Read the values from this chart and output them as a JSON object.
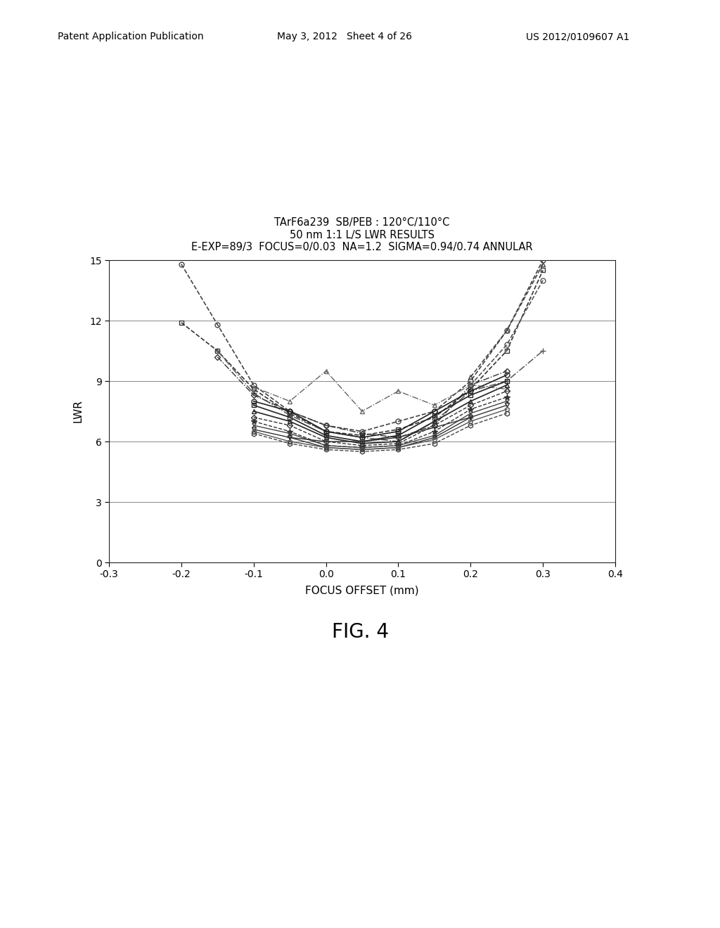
{
  "title_line1": "TArF6a239  SB/PEB : 120°C/110°C",
  "title_line2": "50 nm 1:1 L/S LWR RESULTS",
  "title_line3": "E-EXP=89/3  FOCUS=0/0.03  NA=1.2  SIGMA=0.94/0.74 ANNULAR",
  "xlabel": "FOCUS OFFSET (mm)",
  "ylabel": "LWR",
  "fig_label": "FIG. 4",
  "header_left": "Patent Application Publication",
  "header_mid": "May 3, 2012   Sheet 4 of 26",
  "header_right": "US 2012/0109607 A1",
  "xlim": [
    -0.3,
    0.4
  ],
  "ylim": [
    0,
    15
  ],
  "xticks": [
    -0.3,
    -0.2,
    -0.1,
    0.0,
    0.1,
    0.2,
    0.3,
    0.4
  ],
  "yticks": [
    0,
    3,
    6,
    9,
    12,
    15
  ],
  "background_color": "#ffffff",
  "series": [
    {
      "x": [
        -0.2,
        -0.15,
        -0.1,
        -0.05,
        0.0,
        0.05,
        0.1,
        0.15,
        0.2,
        0.25,
        0.3
      ],
      "y": [
        14.8,
        11.8,
        8.8,
        7.5,
        6.8,
        6.5,
        7.0,
        7.5,
        9.0,
        11.5,
        15.0
      ],
      "color": "#444444",
      "linestyle": "--",
      "marker": "o",
      "markersize": 5,
      "linewidth": 1.2,
      "mfc": "none"
    },
    {
      "x": [
        -0.2,
        -0.15,
        -0.1,
        -0.05,
        0.0,
        0.05,
        0.1,
        0.15,
        0.2,
        0.25,
        0.3
      ],
      "y": [
        11.9,
        10.5,
        8.6,
        7.4,
        6.5,
        6.3,
        6.6,
        7.2,
        8.6,
        10.5,
        14.5
      ],
      "color": "#333333",
      "linestyle": "--",
      "marker": "s",
      "markersize": 4,
      "linewidth": 1.2,
      "mfc": "none"
    },
    {
      "x": [
        -0.15,
        -0.1,
        -0.05,
        0.0,
        0.05,
        0.1,
        0.15,
        0.2,
        0.25,
        0.3
      ],
      "y": [
        10.5,
        8.4,
        7.3,
        6.5,
        6.2,
        6.0,
        7.0,
        8.5,
        9.0,
        10.5
      ],
      "color": "#555555",
      "linestyle": "-.",
      "marker": "+",
      "markersize": 6,
      "linewidth": 1.1,
      "mfc": "#555555"
    },
    {
      "x": [
        -0.15,
        -0.1,
        -0.05,
        0.0,
        0.05,
        0.1,
        0.15,
        0.2,
        0.25
      ],
      "y": [
        10.2,
        8.3,
        7.5,
        6.8,
        6.4,
        6.2,
        6.8,
        8.8,
        9.5
      ],
      "color": "#333333",
      "linestyle": "-.",
      "marker": "D",
      "markersize": 4,
      "linewidth": 1.0,
      "mfc": "none"
    },
    {
      "x": [
        -0.1,
        -0.05,
        0.0,
        0.05,
        0.1,
        0.15,
        0.2,
        0.25
      ],
      "y": [
        8.7,
        8.0,
        9.5,
        7.5,
        8.5,
        7.8,
        8.8,
        8.6
      ],
      "color": "#666666",
      "linestyle": "-.",
      "marker": "^",
      "markersize": 5,
      "linewidth": 1.0,
      "mfc": "none"
    },
    {
      "x": [
        -0.1,
        -0.05,
        0.0,
        0.05,
        0.1,
        0.15,
        0.2,
        0.25
      ],
      "y": [
        8.0,
        7.5,
        6.5,
        6.2,
        6.5,
        7.5,
        8.5,
        9.3
      ],
      "color": "#222222",
      "linestyle": "-",
      "marker": "o",
      "markersize": 5,
      "linewidth": 1.2,
      "mfc": "none"
    },
    {
      "x": [
        -0.1,
        -0.05,
        0.0,
        0.05,
        0.1,
        0.15,
        0.2,
        0.25
      ],
      "y": [
        7.8,
        7.2,
        6.3,
        6.0,
        6.3,
        7.3,
        8.3,
        9.0
      ],
      "color": "#222222",
      "linestyle": "-",
      "marker": "s",
      "markersize": 4,
      "linewidth": 1.2,
      "mfc": "none"
    },
    {
      "x": [
        -0.1,
        -0.05,
        0.0,
        0.05,
        0.1,
        0.15,
        0.2,
        0.25
      ],
      "y": [
        7.5,
        7.0,
        6.2,
        5.9,
        6.0,
        7.0,
        8.0,
        8.8
      ],
      "color": "#222222",
      "linestyle": "-",
      "marker": "^",
      "markersize": 5,
      "linewidth": 1.2,
      "mfc": "none"
    },
    {
      "x": [
        -0.1,
        -0.05,
        0.0,
        0.05,
        0.1,
        0.15,
        0.2,
        0.25
      ],
      "y": [
        7.2,
        6.8,
        6.0,
        5.8,
        5.9,
        6.8,
        7.8,
        8.5
      ],
      "color": "#333333",
      "linestyle": "--",
      "marker": "D",
      "markersize": 4,
      "linewidth": 1.0,
      "mfc": "none"
    },
    {
      "x": [
        -0.1,
        -0.05,
        0.0,
        0.05,
        0.1,
        0.15,
        0.2,
        0.25
      ],
      "y": [
        7.0,
        6.5,
        5.8,
        5.7,
        5.8,
        6.5,
        7.6,
        8.2
      ],
      "color": "#333333",
      "linestyle": "--",
      "marker": "*",
      "markersize": 6,
      "linewidth": 1.0,
      "mfc": "#333333"
    },
    {
      "x": [
        -0.1,
        -0.05,
        0.0,
        0.05,
        0.1,
        0.15,
        0.2,
        0.25
      ],
      "y": [
        6.8,
        6.4,
        5.8,
        5.7,
        5.8,
        6.3,
        7.4,
        8.0
      ],
      "color": "#444444",
      "linestyle": "-",
      "marker": "x",
      "markersize": 5,
      "linewidth": 1.0,
      "mfc": "#444444"
    },
    {
      "x": [
        -0.1,
        -0.05,
        0.0,
        0.05,
        0.1,
        0.15,
        0.2,
        0.25
      ],
      "y": [
        6.6,
        6.2,
        5.7,
        5.6,
        5.7,
        6.2,
        7.2,
        7.8
      ],
      "color": "#333333",
      "linestyle": "-",
      "marker": "v",
      "markersize": 5,
      "linewidth": 1.0,
      "mfc": "none"
    },
    {
      "x": [
        -0.1,
        -0.05,
        0.0,
        0.05,
        0.1,
        0.15,
        0.2,
        0.25
      ],
      "y": [
        6.5,
        6.0,
        5.7,
        5.6,
        5.7,
        6.1,
        7.0,
        7.6
      ],
      "color": "#555555",
      "linestyle": "-",
      "marker": "p",
      "markersize": 5,
      "linewidth": 1.0,
      "mfc": "none"
    },
    {
      "x": [
        -0.1,
        -0.05,
        0.0,
        0.05,
        0.1,
        0.15,
        0.2,
        0.25
      ],
      "y": [
        6.4,
        5.9,
        5.6,
        5.5,
        5.6,
        5.9,
        6.8,
        7.4
      ],
      "color": "#444444",
      "linestyle": "--",
      "marker": "h",
      "markersize": 5,
      "linewidth": 1.0,
      "mfc": "none"
    },
    {
      "x": [
        -0.05,
        0.0,
        0.05,
        0.1,
        0.15,
        0.2
      ],
      "y": [
        6.2,
        6.0,
        6.0,
        6.2,
        6.7,
        7.2
      ],
      "color": "#333333",
      "linestyle": "-",
      "marker": "+",
      "markersize": 6,
      "linewidth": 1.0,
      "mfc": "#333333"
    },
    {
      "x": [
        0.2,
        0.25,
        0.3
      ],
      "y": [
        9.2,
        11.5,
        14.8
      ],
      "color": "#444444",
      "linestyle": "--",
      "marker": "^",
      "markersize": 5,
      "linewidth": 1.2,
      "mfc": "none"
    },
    {
      "x": [
        0.2,
        0.25,
        0.3
      ],
      "y": [
        8.8,
        10.8,
        14.0
      ],
      "color": "#555555",
      "linestyle": "--",
      "marker": "o",
      "markersize": 5,
      "linewidth": 1.2,
      "mfc": "none"
    }
  ]
}
